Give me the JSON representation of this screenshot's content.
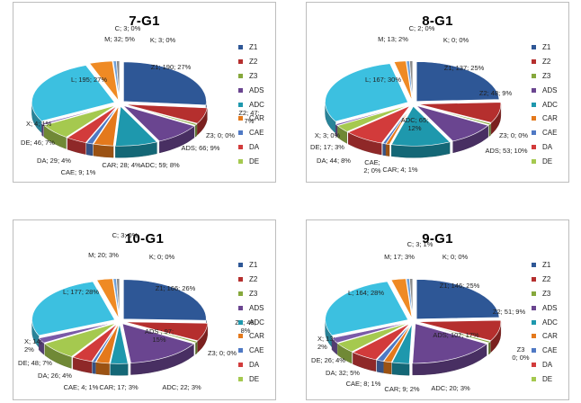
{
  "legend_order": [
    "Z1",
    "Z2",
    "Z3",
    "ADS",
    "ADC",
    "CAR",
    "CAE",
    "DA",
    "DE"
  ],
  "colors": {
    "Z1": "#2e5796",
    "Z2": "#b52f2e",
    "Z3": "#86a83c",
    "ADS": "#6a4590",
    "ADC": "#1e98ad",
    "CAR": "#e4791c",
    "CAE": "#4f79c4",
    "DA": "#d23b3b",
    "DE": "#a5c94f",
    "X": "#7a5aa8",
    "L": "#3cc0e0",
    "M": "#ef8a24",
    "C": "#6fa0d8",
    "K": "#8b8b8b"
  },
  "chart_data": [
    {
      "type": "pie",
      "title": "7-G1",
      "slices": [
        {
          "label": "Z1",
          "value": 190,
          "percent": 27,
          "text": "Z1; 190; 27%"
        },
        {
          "label": "Z2",
          "value": 47,
          "percent": 7,
          "text": "Z2; 47;\n7%"
        },
        {
          "label": "Z3",
          "value": 0,
          "percent": 0,
          "text": "Z3; 0; 0%"
        },
        {
          "label": "ADS",
          "value": 66,
          "percent": 9,
          "text": "ADS; 66; 9%"
        },
        {
          "label": "ADC",
          "value": 59,
          "percent": 8,
          "text": "ADC; 59; 8%"
        },
        {
          "label": "CAR",
          "value": 28,
          "percent": 4,
          "text": "CAR; 28; 4%"
        },
        {
          "label": "CAE",
          "value": 9,
          "percent": 1,
          "text": "CAE; 9; 1%"
        },
        {
          "label": "DA",
          "value": 29,
          "percent": 4,
          "text": "DA; 29; 4%"
        },
        {
          "label": "DE",
          "value": 46,
          "percent": 7,
          "text": "DE; 46; 7%"
        },
        {
          "label": "X",
          "value": 4,
          "percent": 1,
          "text": "X; 4; 1%"
        },
        {
          "label": "L",
          "value": 195,
          "percent": 27,
          "text": "L; 195; 27%"
        },
        {
          "label": "M",
          "value": 32,
          "percent": 5,
          "text": "M; 32; 5%"
        },
        {
          "label": "C",
          "value": 3,
          "percent": 0,
          "text": "C; 3; 0%"
        },
        {
          "label": "K",
          "value": 3,
          "percent": 0,
          "text": "K; 3; 0%"
        }
      ]
    },
    {
      "type": "pie",
      "title": "8-G1",
      "slices": [
        {
          "label": "Z1",
          "value": 137,
          "percent": 25,
          "text": "Z1; 137; 25%"
        },
        {
          "label": "Z2",
          "value": 48,
          "percent": 9,
          "text": "Z2; 48; 9%"
        },
        {
          "label": "Z3",
          "value": 0,
          "percent": 0,
          "text": "Z3; 0; 0%"
        },
        {
          "label": "ADS",
          "value": 53,
          "percent": 10,
          "text": "ADS; 53; 10%"
        },
        {
          "label": "ADC",
          "value": 65,
          "percent": 12,
          "text": "ADC; 65;\n12%"
        },
        {
          "label": "CAR",
          "value": 4,
          "percent": 1,
          "text": "CAR; 4; 1%"
        },
        {
          "label": "CAE",
          "value": 2,
          "percent": 0,
          "text": "CAE;\n2; 0%"
        },
        {
          "label": "DA",
          "value": 44,
          "percent": 8,
          "text": "DA; 44; 8%"
        },
        {
          "label": "DE",
          "value": 17,
          "percent": 3,
          "text": "DE; 17; 3%"
        },
        {
          "label": "X",
          "value": 3,
          "percent": 0,
          "text": "X; 3; 0%"
        },
        {
          "label": "L",
          "value": 167,
          "percent": 30,
          "text": "L; 167; 30%"
        },
        {
          "label": "M",
          "value": 13,
          "percent": 2,
          "text": "M; 13; 2%"
        },
        {
          "label": "C",
          "value": 2,
          "percent": 0,
          "text": "C; 2; 0%"
        },
        {
          "label": "K",
          "value": 0,
          "percent": 0,
          "text": "K; 0; 0%"
        }
      ]
    },
    {
      "type": "pie",
      "title": "10-G1",
      "slices": [
        {
          "label": "Z1",
          "value": 166,
          "percent": 26,
          "text": "Z1; 166; 26%"
        },
        {
          "label": "Z2",
          "value": 48,
          "percent": 8,
          "text": "Z2; 48;\n8%"
        },
        {
          "label": "Z3",
          "value": 0,
          "percent": 0,
          "text": "Z3; 0; 0%"
        },
        {
          "label": "ADS",
          "value": 97,
          "percent": 15,
          "text": "ADS ; 97;\n15%"
        },
        {
          "label": "ADC",
          "value": 22,
          "percent": 3,
          "text": "ADC; 22; 3%"
        },
        {
          "label": "CAR",
          "value": 17,
          "percent": 3,
          "text": "CAR; 17; 3%"
        },
        {
          "label": "CAE",
          "value": 4,
          "percent": 1,
          "text": "CAE; 4; 1%"
        },
        {
          "label": "DA",
          "value": 26,
          "percent": 4,
          "text": "DA; 26; 4%"
        },
        {
          "label": "DE",
          "value": 48,
          "percent": 7,
          "text": "DE; 48; 7%"
        },
        {
          "label": "X",
          "value": 14,
          "percent": 2,
          "text": "X; 14;\n2%"
        },
        {
          "label": "L",
          "value": 177,
          "percent": 28,
          "text": "L; 177; 28%"
        },
        {
          "label": "M",
          "value": 20,
          "percent": 3,
          "text": "M; 20; 3%"
        },
        {
          "label": "C",
          "value": 3,
          "percent": 0,
          "text": "C; 3; 0%"
        },
        {
          "label": "K",
          "value": 0,
          "percent": 0,
          "text": "K; 0; 0%"
        }
      ]
    },
    {
      "type": "pie",
      "title": "9-G1",
      "slices": [
        {
          "label": "Z1",
          "value": 146,
          "percent": 25,
          "text": "Z1; 146; 25%"
        },
        {
          "label": "Z2",
          "value": 51,
          "percent": 9,
          "text": "Z2; 51; 9%"
        },
        {
          "label": "Z3",
          "value": 0,
          "percent": 0,
          "text": "Z3\n0; 0%"
        },
        {
          "label": "ADS",
          "value": 102,
          "percent": 17,
          "text": "ADS; 102; 17%"
        },
        {
          "label": "ADC",
          "value": 20,
          "percent": 3,
          "text": "ADC; 20; 3%"
        },
        {
          "label": "CAR",
          "value": 9,
          "percent": 2,
          "text": "CAR; 9; 2%"
        },
        {
          "label": "CAE",
          "value": 8,
          "percent": 1,
          "text": "CAE; 8; 1%"
        },
        {
          "label": "DA",
          "value": 32,
          "percent": 5,
          "text": "DA; 32; 5%"
        },
        {
          "label": "DE",
          "value": 26,
          "percent": 4,
          "text": "DE; 26; 4%"
        },
        {
          "label": "X",
          "value": 13,
          "percent": 2,
          "text": "X; 13;\n2%"
        },
        {
          "label": "L",
          "value": 164,
          "percent": 28,
          "text": "L; 164; 28%"
        },
        {
          "label": "M",
          "value": 17,
          "percent": 3,
          "text": "M; 17; 3%"
        },
        {
          "label": "C",
          "value": 3,
          "percent": 1,
          "text": "C; 3; 1%"
        },
        {
          "label": "K",
          "value": 0,
          "percent": 0,
          "text": "K; 0; 0%"
        }
      ]
    }
  ]
}
